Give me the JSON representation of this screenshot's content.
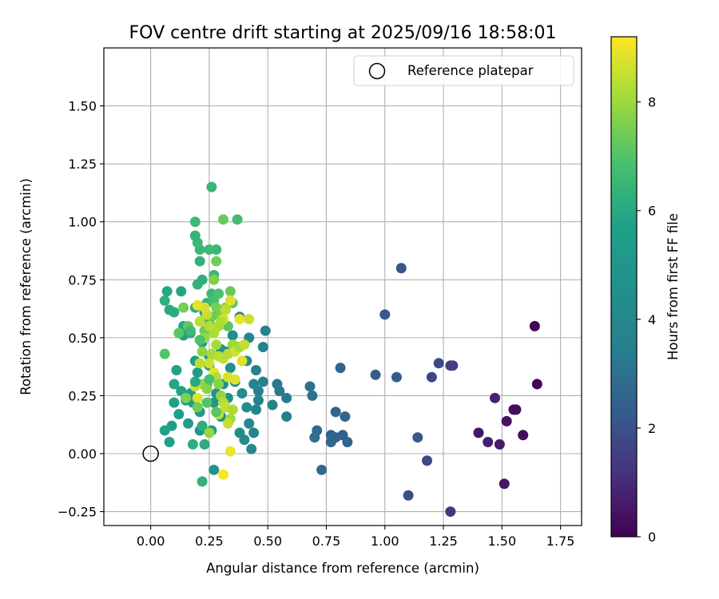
{
  "chart_data": {
    "type": "scatter",
    "title": "FOV centre drift starting at 2025/09/16 18:58:01",
    "xlabel": "Angular distance from reference (arcmin)",
    "ylabel": "Rotation from reference (arcmin)",
    "xlim": [
      -0.2,
      1.84
    ],
    "ylim": [
      -0.31,
      1.75
    ],
    "xticks": [
      "0.00",
      "0.25",
      "0.50",
      "0.75",
      "1.00",
      "1.25",
      "1.50",
      "1.75"
    ],
    "yticks": [
      "−0.25",
      "0.00",
      "0.25",
      "0.50",
      "0.75",
      "1.00",
      "1.25",
      "1.50"
    ],
    "grid": true,
    "legend": {
      "position": "top-right",
      "entries": [
        "Reference platepar"
      ]
    },
    "reference_point": {
      "x": 0.0,
      "y": 0.0
    },
    "colorbar": {
      "label": "Hours from first FF file",
      "range": [
        0,
        9.2
      ],
      "ticks": [
        "0",
        "2",
        "4",
        "6",
        "8"
      ],
      "colormap": "viridis"
    },
    "points": [
      [
        1.64,
        0.55,
        0.1
      ],
      [
        1.65,
        0.3,
        0.1
      ],
      [
        1.59,
        0.08,
        0.2
      ],
      [
        1.56,
        0.19,
        0.3
      ],
      [
        1.55,
        0.19,
        0.3
      ],
      [
        1.52,
        0.14,
        0.4
      ],
      [
        1.51,
        -0.13,
        0.5
      ],
      [
        1.49,
        0.04,
        0.6
      ],
      [
        1.47,
        0.24,
        0.8
      ],
      [
        1.44,
        0.05,
        0.7
      ],
      [
        1.4,
        0.09,
        0.5
      ],
      [
        1.29,
        0.38,
        1.3
      ],
      [
        1.28,
        0.38,
        1.5
      ],
      [
        1.28,
        -0.25,
        1.3
      ],
      [
        1.23,
        0.39,
        1.8
      ],
      [
        1.2,
        0.33,
        1.7
      ],
      [
        1.18,
        -0.03,
        1.8
      ],
      [
        1.14,
        0.07,
        2.2
      ],
      [
        1.1,
        -0.18,
        1.9
      ],
      [
        1.07,
        0.8,
        2.1
      ],
      [
        1.05,
        0.33,
        2.3
      ],
      [
        1.0,
        0.6,
        2.2
      ],
      [
        0.96,
        0.34,
        2.3
      ],
      [
        0.84,
        0.05,
        2.6
      ],
      [
        0.83,
        0.16,
        2.6
      ],
      [
        0.82,
        0.08,
        2.4
      ],
      [
        0.81,
        0.37,
        2.6
      ],
      [
        0.79,
        0.18,
        2.6
      ],
      [
        0.79,
        0.07,
        2.5
      ],
      [
        0.77,
        0.05,
        2.7
      ],
      [
        0.77,
        0.08,
        2.6
      ],
      [
        0.73,
        -0.07,
        2.8
      ],
      [
        0.71,
        0.1,
        2.8
      ],
      [
        0.7,
        0.07,
        2.9
      ],
      [
        0.69,
        0.25,
        3.0
      ],
      [
        0.68,
        0.29,
        3.0
      ],
      [
        0.58,
        0.24,
        3.3
      ],
      [
        0.58,
        0.16,
        3.4
      ],
      [
        0.55,
        0.27,
        3.3
      ],
      [
        0.54,
        0.3,
        3.3
      ],
      [
        0.52,
        0.21,
        3.5
      ],
      [
        0.49,
        0.53,
        3.5
      ],
      [
        0.48,
        0.46,
        3.6
      ],
      [
        0.48,
        0.31,
        3.6
      ],
      [
        0.46,
        0.23,
        3.7
      ],
      [
        0.46,
        0.27,
        3.5
      ],
      [
        0.45,
        0.36,
        3.6
      ],
      [
        0.45,
        0.19,
        3.8
      ],
      [
        0.44,
        0.3,
        3.9
      ],
      [
        0.44,
        0.09,
        3.7
      ],
      [
        0.43,
        0.02,
        4.0
      ],
      [
        0.42,
        0.5,
        3.9
      ],
      [
        0.42,
        0.13,
        4.0
      ],
      [
        0.41,
        0.4,
        4.1
      ],
      [
        0.41,
        0.2,
        4.3
      ],
      [
        0.4,
        0.06,
        4.2
      ],
      [
        0.39,
        0.26,
        4.3
      ],
      [
        0.38,
        0.59,
        4.1
      ],
      [
        0.38,
        0.09,
        4.4
      ],
      [
        0.37,
        0.46,
        4.6
      ],
      [
        0.36,
        0.31,
        4.3
      ],
      [
        0.35,
        0.51,
        4.4
      ],
      [
        0.34,
        0.37,
        4.5
      ],
      [
        0.33,
        0.24,
        4.6
      ],
      [
        0.32,
        0.44,
        4.5
      ],
      [
        0.31,
        0.3,
        4.7
      ],
      [
        0.3,
        0.16,
        4.5
      ],
      [
        0.3,
        0.45,
        4.7
      ],
      [
        0.29,
        0.6,
        4.8
      ],
      [
        0.28,
        0.26,
        4.7
      ],
      [
        0.27,
        0.22,
        4.8
      ],
      [
        0.27,
        -0.07,
        4.6
      ],
      [
        0.26,
        0.1,
        5.0
      ],
      [
        0.25,
        0.42,
        5.0
      ],
      [
        0.25,
        0.38,
        5.1
      ],
      [
        0.24,
        0.3,
        5.1
      ],
      [
        0.23,
        0.61,
        5.2
      ],
      [
        0.22,
        0.48,
        5.3
      ],
      [
        0.21,
        0.18,
        5.2
      ],
      [
        0.21,
        0.1,
        5.0
      ],
      [
        0.2,
        0.35,
        5.4
      ],
      [
        0.19,
        0.4,
        5.4
      ],
      [
        0.18,
        0.22,
        5.5
      ],
      [
        0.17,
        0.26,
        5.6
      ],
      [
        0.16,
        0.13,
        5.5
      ],
      [
        0.15,
        0.23,
        5.6
      ],
      [
        0.14,
        0.51,
        5.7
      ],
      [
        0.13,
        0.27,
        5.8
      ],
      [
        0.12,
        0.17,
        5.6
      ],
      [
        0.11,
        0.36,
        5.8
      ],
      [
        0.1,
        0.22,
        5.7
      ],
      [
        0.1,
        0.3,
        5.9
      ],
      [
        0.09,
        0.12,
        5.6
      ],
      [
        0.08,
        0.05,
        5.7
      ],
      [
        0.06,
        0.1,
        5.8
      ],
      [
        0.07,
        0.7,
        6.0
      ],
      [
        0.13,
        0.7,
        5.9
      ],
      [
        0.06,
        0.66,
        6.2
      ],
      [
        0.08,
        0.62,
        6.0
      ],
      [
        0.1,
        0.61,
        6.1
      ],
      [
        0.14,
        0.55,
        6.0
      ],
      [
        0.17,
        0.52,
        6.1
      ],
      [
        0.19,
        0.63,
        6.2
      ],
      [
        0.2,
        0.73,
        6.3
      ],
      [
        0.21,
        0.83,
        6.3
      ],
      [
        0.22,
        0.75,
        6.2
      ],
      [
        0.24,
        0.65,
        6.4
      ],
      [
        0.25,
        0.57,
        6.4
      ],
      [
        0.26,
        0.69,
        6.5
      ],
      [
        0.27,
        0.77,
        6.5
      ],
      [
        0.28,
        0.88,
        6.5
      ],
      [
        0.25,
        0.88,
        6.6
      ],
      [
        0.26,
        1.15,
        6.5
      ],
      [
        0.21,
        0.88,
        6.5
      ],
      [
        0.2,
        0.91,
        6.6
      ],
      [
        0.19,
        0.94,
        6.4
      ],
      [
        0.19,
        1.0,
        6.6
      ],
      [
        0.37,
        1.01,
        6.7
      ],
      [
        0.31,
        1.01,
        7.3
      ],
      [
        0.22,
        0.12,
        6.2
      ],
      [
        0.22,
        -0.12,
        6.3
      ],
      [
        0.18,
        0.04,
        6.2
      ],
      [
        0.23,
        0.04,
        6.1
      ],
      [
        0.27,
        0.66,
        6.8
      ],
      [
        0.29,
        0.69,
        6.9
      ],
      [
        0.3,
        0.59,
        7.0
      ],
      [
        0.31,
        0.56,
        7.0
      ],
      [
        0.33,
        0.55,
        7.1
      ],
      [
        0.34,
        0.7,
        7.3
      ],
      [
        0.35,
        0.65,
        7.2
      ],
      [
        0.06,
        0.43,
        7.0
      ],
      [
        0.12,
        0.52,
        7.1
      ],
      [
        0.16,
        0.55,
        7.2
      ],
      [
        0.23,
        0.53,
        7.3
      ],
      [
        0.26,
        0.59,
        7.4
      ],
      [
        0.28,
        0.63,
        7.5
      ],
      [
        0.3,
        0.6,
        7.6
      ],
      [
        0.32,
        0.63,
        7.7
      ],
      [
        0.28,
        0.83,
        7.4
      ],
      [
        0.27,
        0.75,
        7.6
      ],
      [
        0.14,
        0.63,
        7.5
      ],
      [
        0.42,
        0.58,
        8.6
      ],
      [
        0.38,
        0.58,
        8.9
      ],
      [
        0.34,
        0.66,
        8.8
      ],
      [
        0.32,
        0.62,
        8.4
      ],
      [
        0.31,
        0.58,
        8.7
      ],
      [
        0.3,
        0.57,
        8.3
      ],
      [
        0.29,
        0.55,
        8.2
      ],
      [
        0.27,
        0.52,
        8.2
      ],
      [
        0.25,
        0.55,
        8.3
      ],
      [
        0.24,
        0.6,
        8.5
      ],
      [
        0.23,
        0.63,
        8.7
      ],
      [
        0.21,
        0.57,
        8.4
      ],
      [
        0.2,
        0.64,
        8.9
      ],
      [
        0.22,
        0.44,
        7.8
      ],
      [
        0.23,
        0.5,
        7.9
      ],
      [
        0.26,
        0.43,
        8.1
      ],
      [
        0.28,
        0.47,
        8.1
      ],
      [
        0.29,
        0.42,
        8.3
      ],
      [
        0.31,
        0.41,
        8.4
      ],
      [
        0.33,
        0.43,
        8.3
      ],
      [
        0.35,
        0.47,
        8.0
      ],
      [
        0.36,
        0.44,
        8.6
      ],
      [
        0.38,
        0.46,
        8.1
      ],
      [
        0.39,
        0.4,
        8.8
      ],
      [
        0.4,
        0.47,
        8.5
      ],
      [
        0.21,
        0.39,
        8.4
      ],
      [
        0.22,
        0.3,
        7.8
      ],
      [
        0.24,
        0.28,
        7.7
      ],
      [
        0.25,
        0.39,
        8.6
      ],
      [
        0.27,
        0.35,
        8.9
      ],
      [
        0.28,
        0.33,
        8.3
      ],
      [
        0.29,
        0.3,
        7.7
      ],
      [
        0.3,
        0.25,
        7.9
      ],
      [
        0.31,
        0.22,
        8.3
      ],
      [
        0.32,
        0.2,
        8.5
      ],
      [
        0.33,
        0.33,
        8.7
      ],
      [
        0.34,
        0.15,
        8.0
      ],
      [
        0.35,
        0.19,
        8.2
      ],
      [
        0.36,
        0.32,
        8.8
      ],
      [
        0.25,
        0.09,
        7.9
      ],
      [
        0.29,
        0.17,
        8.4
      ],
      [
        0.33,
        0.13,
        8.5
      ],
      [
        0.19,
        0.29,
        8.6
      ],
      [
        0.2,
        0.24,
        8.8
      ],
      [
        0.34,
        0.01,
        9.0
      ],
      [
        0.31,
        -0.09,
        9.1
      ],
      [
        0.15,
        0.24,
        7.6
      ],
      [
        0.2,
        0.2,
        7.4
      ],
      [
        0.28,
        0.18,
        7.1
      ],
      [
        0.17,
        0.53,
        6.6
      ],
      [
        0.21,
        0.49,
        6.9
      ],
      [
        0.25,
        0.32,
        6.8
      ],
      [
        0.19,
        0.31,
        6.0
      ],
      [
        0.24,
        0.22,
        7.0
      ]
    ]
  }
}
